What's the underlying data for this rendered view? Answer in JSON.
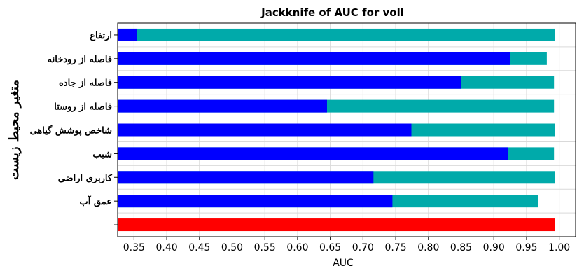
{
  "chart_data": {
    "type": "bar",
    "orientation": "horizontal",
    "stacked_overlay": true,
    "title": "Jackknife of AUC for voll",
    "xlabel": "AUC",
    "ylabel": "متغیر محیط زیست",
    "xlim": [
      0.325,
      1.025
    ],
    "xticks": [
      "0.35",
      "0.40",
      "0.45",
      "0.50",
      "0.55",
      "0.60",
      "0.65",
      "0.70",
      "0.75",
      "0.80",
      "0.85",
      "0.90",
      "0.95",
      "1.00"
    ],
    "grid": true,
    "categories": [
      "ارتفاع",
      "فاصله از رودخانه",
      "فاصله از جاده",
      "فاصله از روستا",
      "شاخص پوشش گیاهی",
      "شیب",
      "کاربری اراضی",
      "عمق آب",
      ""
    ],
    "series": [
      {
        "key": "without",
        "color": "#00aaaa",
        "values": [
          0.993,
          0.981,
          0.992,
          0.992,
          0.993,
          0.992,
          0.993,
          0.968,
          null
        ]
      },
      {
        "key": "only",
        "color": "#0000ff",
        "values": [
          0.354,
          0.925,
          0.85,
          0.645,
          0.774,
          0.922,
          0.716,
          0.745,
          null
        ]
      },
      {
        "key": "all",
        "color": "#ff0000",
        "values": [
          null,
          null,
          null,
          null,
          null,
          null,
          null,
          null,
          0.993
        ]
      }
    ]
  },
  "colors": {
    "grid": "#d9d9d9",
    "axis": "#000000",
    "background": "#ffffff"
  }
}
